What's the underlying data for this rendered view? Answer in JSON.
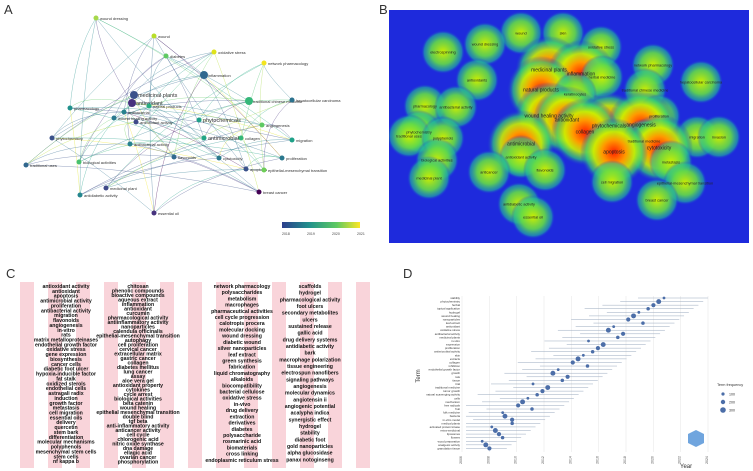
{
  "panels": {
    "a": {
      "label": "A",
      "nodes": [
        "wound dressing",
        "wound",
        "oxidative stress",
        "diabetes",
        "network pharmacology",
        "antioxidant",
        "inflammation",
        "medicinal plants",
        "traditional chinese medicine",
        "hepatocellular carcinoma",
        "pharmacology",
        "antibacterial",
        "antioxidant activity",
        "wound healing activity",
        "phytochemicals",
        "angiogenesis",
        "phytochemistry",
        "antibacterial activity",
        "antimicrobial",
        "collagen",
        "cytotoxicity",
        "apoptosis",
        "traditional uses",
        "biological activities",
        "medicinal plant",
        "antidiabetic activity",
        "essential oil",
        "flavonoids",
        "natural products",
        "epithelial-mesenchymal transition",
        "migration",
        "proliferation",
        "breast cancer"
      ],
      "scale_ticks": [
        "2018",
        "2019",
        "2020",
        "2021"
      ]
    },
    "b": {
      "label": "B",
      "nodes": [
        "wound",
        "skin",
        "wound dressing",
        "oxidative stress",
        "electrospinning",
        "network pharmacology",
        "medicinal plants",
        "inflammation",
        "herbal medicine",
        "antioxidants",
        "natural products",
        "traditional chinese medicine",
        "hepatocellular carcinoma",
        "keratinocytes",
        "pharmacology",
        "antibacterial activity",
        "wound healing activity",
        "proliferation",
        "antioxidant",
        "phytochemicals",
        "angiogenesis",
        "phytochemistry",
        "collagen",
        "migration",
        "invasion",
        "traditional uses",
        "polyphenols",
        "antimicrobial",
        "traditional medicine",
        "cytotoxicity",
        "apoptosis",
        "biological activities",
        "metastasis",
        "medicinal plant",
        "antioxidant activity",
        "flavonoids",
        "anticancer",
        "cell migration",
        "epithelial-mesenchymal transition",
        "breast cancer",
        "antidiabetic activity",
        "essential oil"
      ]
    },
    "c": {
      "label": "C",
      "col1": [
        "antioxidant activity",
        "antioxidant",
        "apoptosis",
        "antimicrobial activity",
        "proliferation",
        "antibacterial activity",
        "migration",
        "flavonoids",
        "angiogenesis",
        "in-vitro",
        "rats",
        "matrix metalloproteinases",
        "endothelial growth factor",
        "oxidative stress",
        "gene expression",
        "biosynthesis",
        "cancer cells",
        "diabetic foot ulcer",
        "hypoxia-inducible factor",
        "fat stalk",
        "oxidized sterols",
        "endothelial cells",
        "astragali radix",
        "induction",
        "growth factor",
        "metastasis",
        "cell migration",
        "essential oils",
        "delivery",
        "quercetin",
        "stem bark",
        "differentiation",
        "molecular mechanisms",
        "polyphenols",
        "mesenchymal stem cells",
        "stem cells",
        "nf kappa b"
      ],
      "col2": [
        "chitosan",
        "phenolic compounds",
        "bioactive compounds",
        "aqueous extract",
        "inflammation",
        "antioxidant",
        "curcumin",
        "pharmacological activity",
        "antiinflammatory activity",
        "nanoparticles",
        "calendula officinalis",
        "epithelial-mesenchymal transition",
        "autophagy",
        "cell proliferation",
        "cervical cancer",
        "extracellular matrix",
        "gastric cancer",
        "collagen",
        "diabetes mellitus",
        "lung cancer",
        "assay",
        "aloe vera gel",
        "antioxidant property",
        "cytokines",
        "cycle arrest",
        "biological activities",
        "beta catenin",
        "wound healing",
        "epithelial mesenchymal transition",
        "double blind",
        "tgf beta",
        "anti-inflammatory activity",
        "anticancer activity",
        "cell cycle",
        "chlorogenic acid",
        "nitric oxide synthase",
        "dna damage",
        "ellagic acid",
        "ovarian cancer",
        "phosphorylation"
      ],
      "col3": [
        "network pharmacology",
        "polysaccharides",
        "metabolism",
        "macrophages",
        "pharmaceutical activities",
        "cell cycle progression",
        "calotropis procera",
        "molecular docking",
        "wound dressing",
        "diabetic wound",
        "silver nanoparticles",
        "leaf extract",
        "green synthesis",
        "fabrication",
        "liquid chromatography",
        "alkaloids",
        "biocompatibility",
        "bacterial cellulose",
        "oxidative stress",
        "in-vivo",
        "drug delivery",
        "extraction",
        "derivatives",
        "diabetes",
        "polysaccharide",
        "rosmarinic acid",
        "biomaterials",
        "cross linking",
        "endoplasmic reticulum stress"
      ],
      "col4": [
        "scaffolds",
        "hydrogel",
        "pharmacological activity",
        "foot ulcers",
        "secondary metabolites",
        "ulcers",
        "sustained release",
        "gallic acid",
        "drug delivery systems",
        "antidiabetic activity",
        "bark",
        "macrophage polarization",
        "tissue engineering",
        "electrospun nanofibers",
        "signaling pathways",
        "angiogenesis",
        "molecular dynamics",
        "angiotensin ii",
        "angiogenic potential",
        "acalypha indica",
        "synergistic effect",
        "hydrogel",
        "stability",
        "diabetic foot",
        "gold nanoparticles",
        "alpha glucosidase",
        "panax notoginseng"
      ]
    },
    "d": {
      "label": "D",
      "y_axis_title": "Term",
      "x_axis_title": "Year",
      "x_ticks": [
        "2006",
        "2008",
        "2010",
        "2012",
        "2014",
        "2016",
        "2018",
        "2020",
        "2022",
        "2024"
      ],
      "legend_title": "Term frequency",
      "legend_values": [
        "100",
        "200",
        "300"
      ],
      "terms": [
        "stability",
        "phytochemistry",
        "herbal",
        "topical application",
        "hydrogel",
        "wound healing",
        "nanoparticles",
        "leaf extract",
        "antioxidant",
        "oxidative stress",
        "antibacterial activity",
        "medicinal plants",
        "in-vitro",
        "expression",
        "proliferation",
        "antimicrobial activity",
        "skin",
        "extracts",
        "collagen",
        "inhibition",
        "endothelial growth factor",
        "growth",
        "rats",
        "tissue",
        "trial",
        "traditional medicine",
        "tumor growth",
        "natural scavenging activity",
        "cells",
        "mechanism",
        "free radicals",
        "fruit",
        "folk medicine",
        "bacteria",
        "in-vitro model",
        "medical plants",
        "activated protein kinase",
        "extra-medicinal",
        "liposomes",
        "flowers",
        "wood preparation",
        "analgesic activity",
        "granulation tissue"
      ]
    }
  }
}
